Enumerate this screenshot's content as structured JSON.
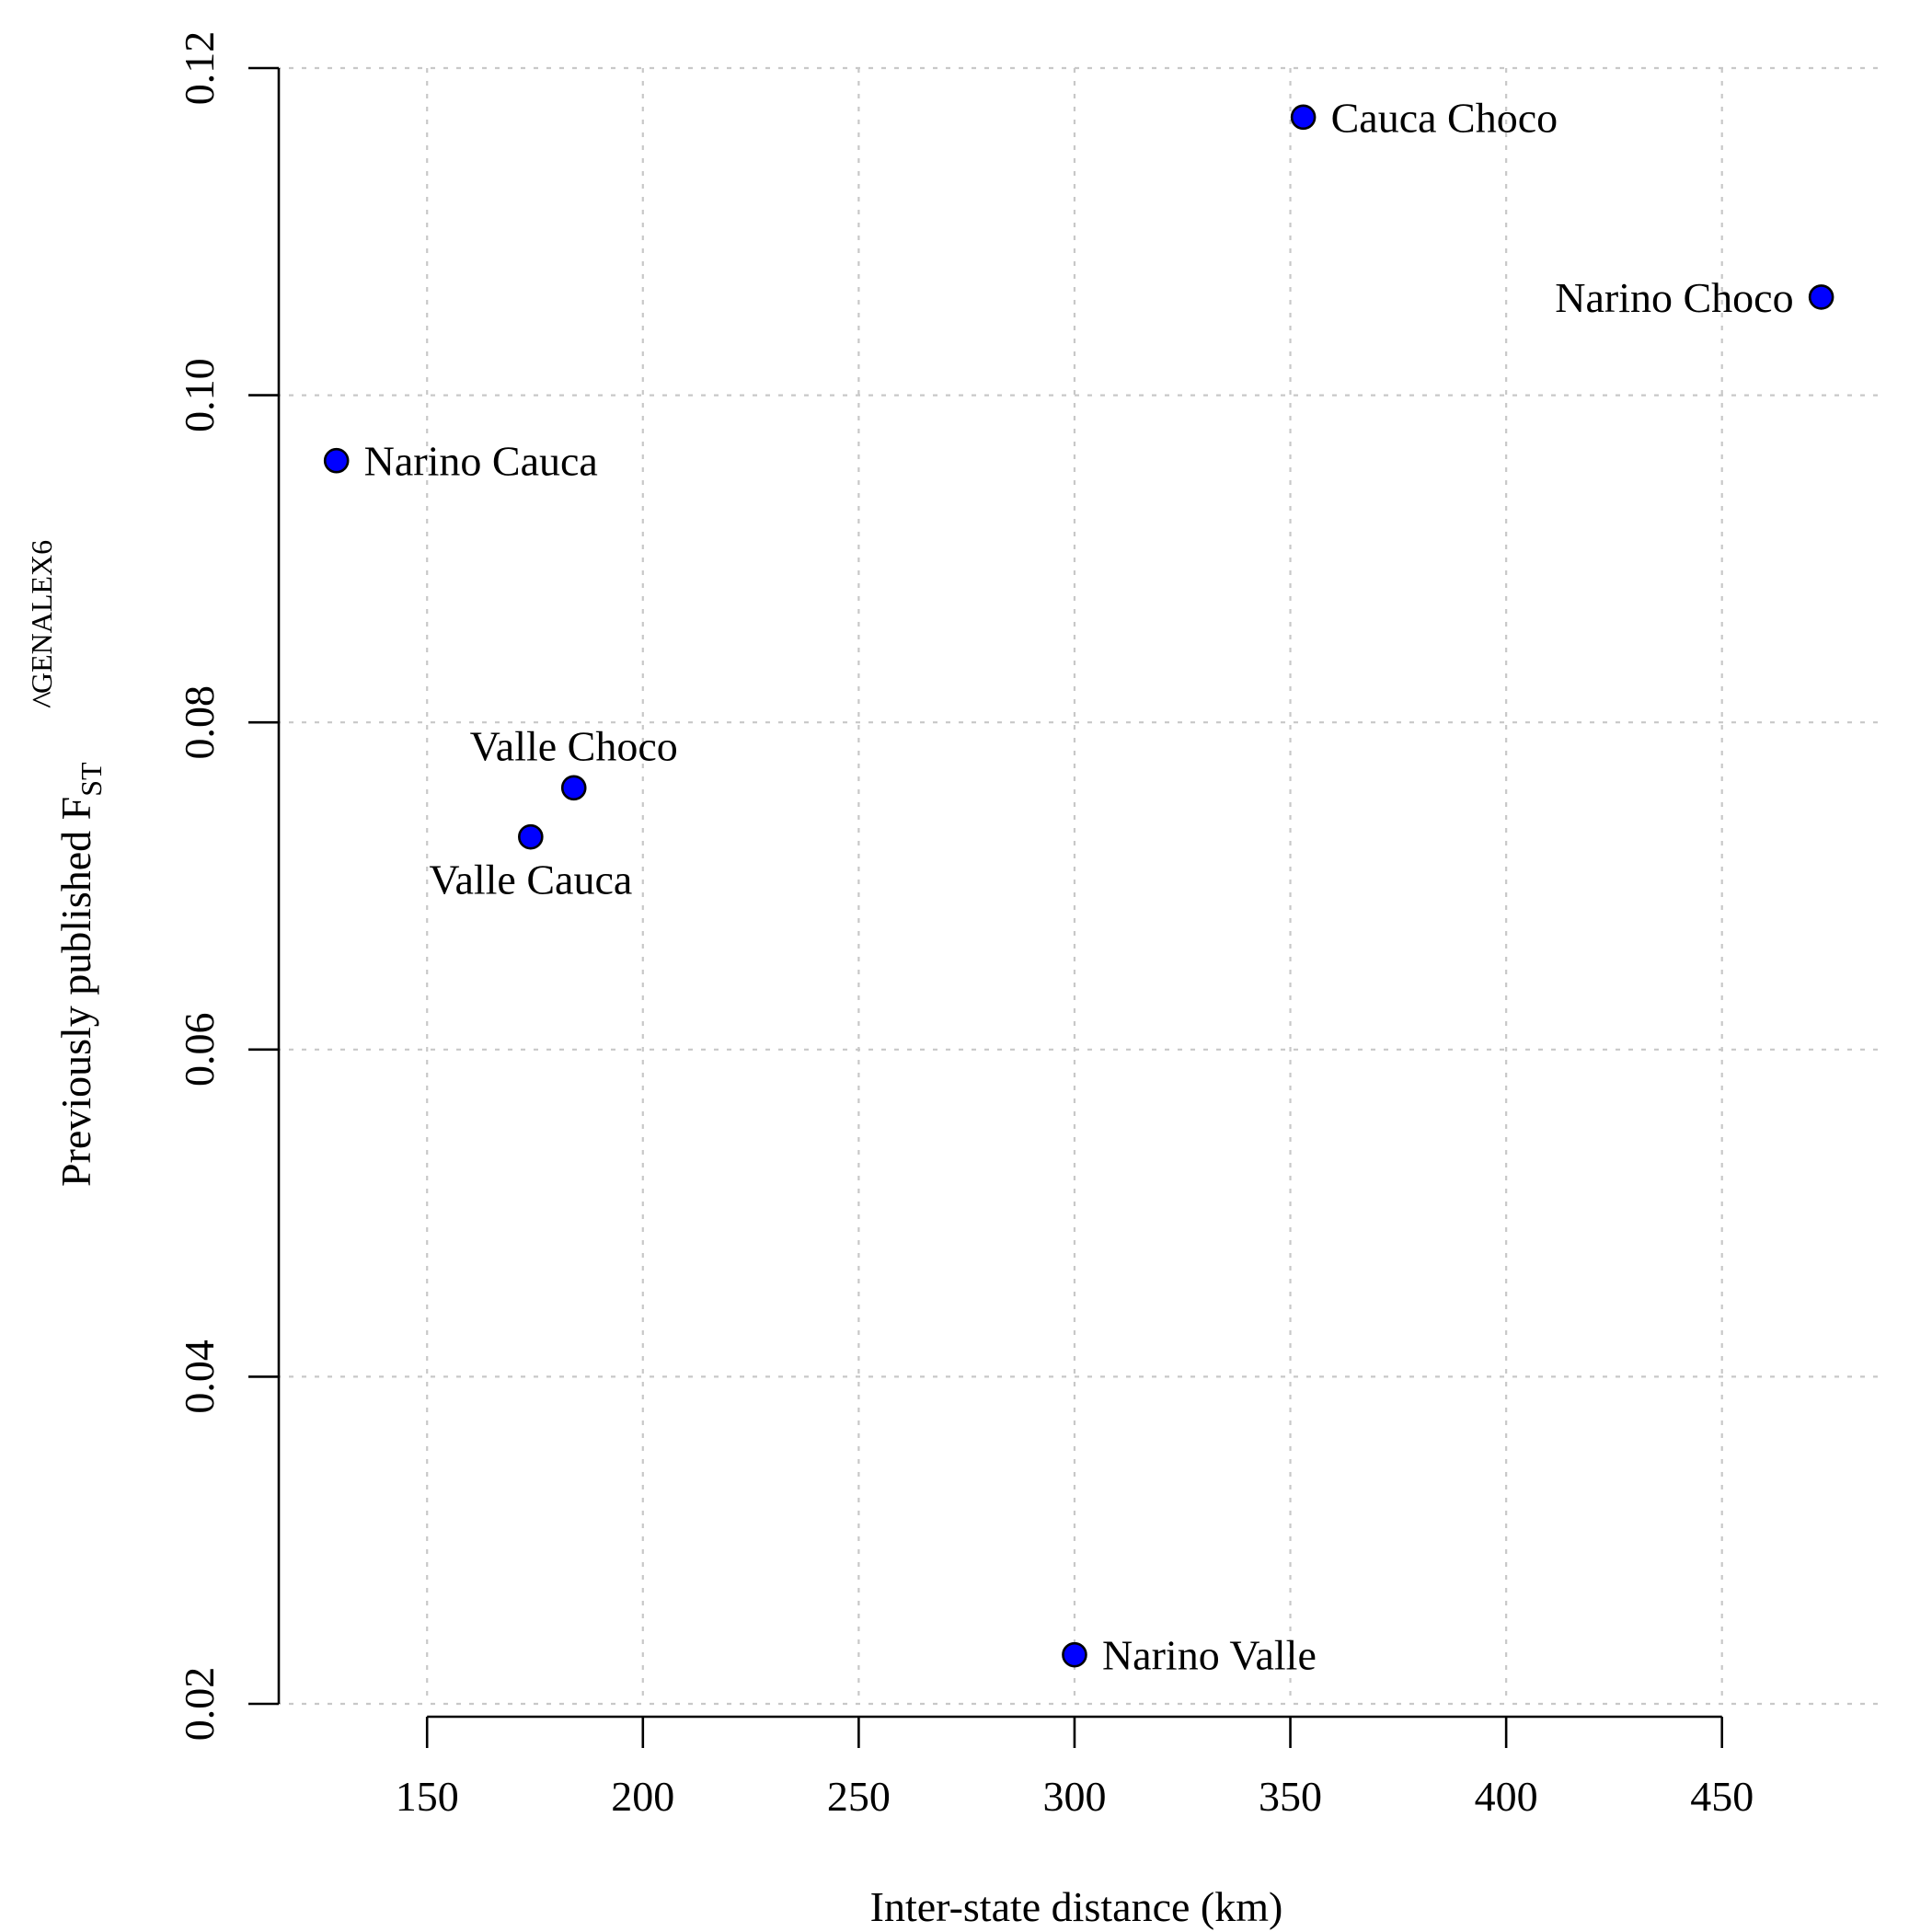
{
  "chart_data": {
    "type": "scatter",
    "xlabel": "Inter-state distance (km)",
    "ylabel": {
      "prefix": "Previously published ",
      "hat": "^",
      "symbol": "F",
      "subscript": "ST",
      "superscript": "GENALEX6"
    },
    "xlim": [
      115,
      488
    ],
    "ylim": [
      0.02,
      0.12
    ],
    "x_ticks": [
      150,
      200,
      250,
      300,
      350,
      400,
      450
    ],
    "x_tick_labels": [
      "150",
      "200",
      "250",
      "300",
      "350",
      "400",
      "450"
    ],
    "y_ticks": [
      0.02,
      0.04,
      0.06,
      0.08,
      0.1,
      0.12
    ],
    "y_tick_labels": [
      "0.02",
      "0.04",
      "0.06",
      "0.08",
      "0.10",
      "0.12"
    ],
    "grid": true,
    "point_color": "#0000ff",
    "points": [
      {
        "label": "Cauca Choco",
        "x": 353,
        "y": 0.117,
        "label_pos": "right"
      },
      {
        "label": "Narino Choco",
        "x": 473,
        "y": 0.106,
        "label_pos": "left"
      },
      {
        "label": "Narino Cauca",
        "x": 129,
        "y": 0.096,
        "label_pos": "right"
      },
      {
        "label": "Valle Choco",
        "x": 184,
        "y": 0.076,
        "label_pos": "above"
      },
      {
        "label": "Valle Cauca",
        "x": 174,
        "y": 0.073,
        "label_pos": "below"
      },
      {
        "label": "Narino Valle",
        "x": 300,
        "y": 0.023,
        "label_pos": "right"
      }
    ]
  }
}
